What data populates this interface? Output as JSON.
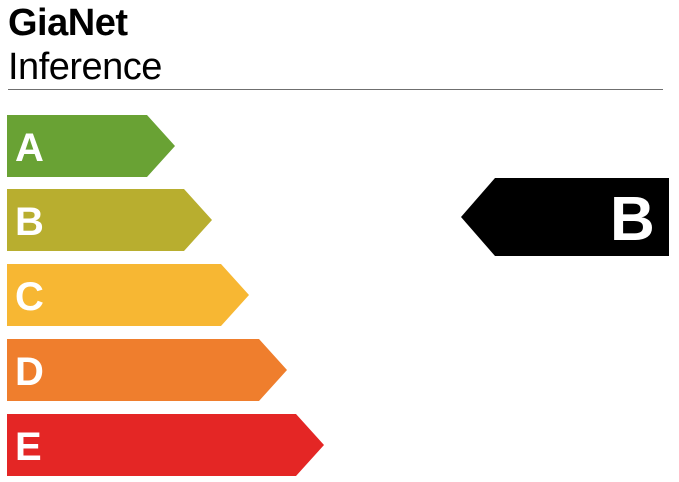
{
  "header": {
    "title": "GiaNet",
    "subtitle": "Inference"
  },
  "scale": {
    "classes": [
      {
        "label": "A",
        "color": "#69a234"
      },
      {
        "label": "B",
        "color": "#b8ae2f"
      },
      {
        "label": "C",
        "color": "#f7b733"
      },
      {
        "label": "D",
        "color": "#ef7e2d"
      },
      {
        "label": "E",
        "color": "#e42625"
      }
    ]
  },
  "rating": {
    "label": "B",
    "color": "#000000"
  }
}
